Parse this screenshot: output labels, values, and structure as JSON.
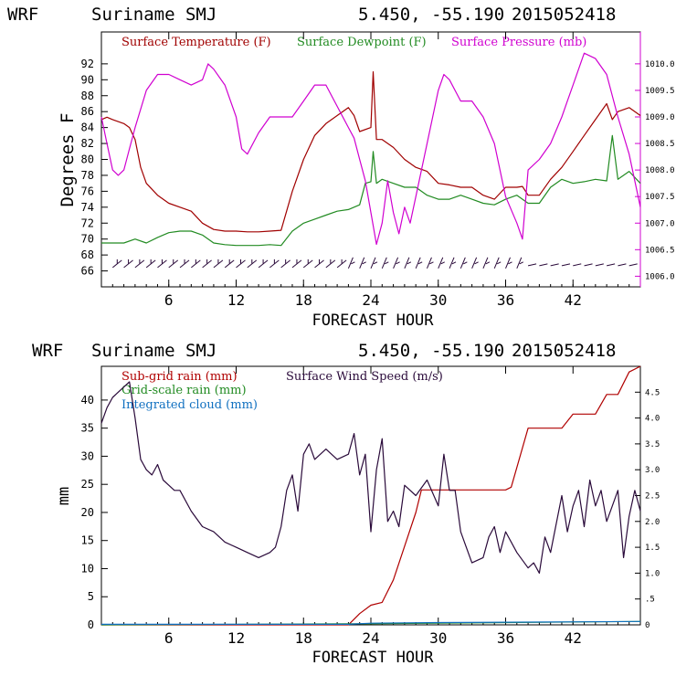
{
  "colors": {
    "background": "#ffffff",
    "axis": "#000000",
    "temperature": "#a00000",
    "dewpoint": "#228b22",
    "pressure": "#d000d0",
    "subgrid_rain": "#b00000",
    "gridscale_rain": "#228b22",
    "cloud": "#1070c0",
    "wind": "#2a0a3a",
    "barbs": "#2a0a3a"
  },
  "chart_data": [
    {
      "type": "line",
      "header": {
        "model": "WRF",
        "location": "Suriname SMJ",
        "coords": "5.450, -55.190",
        "init": "2015052418"
      },
      "xlabel": "FORECAST HOUR",
      "ylabel": "Degrees F",
      "xlim": [
        0,
        48
      ],
      "ylim": [
        64,
        96
      ],
      "y2lim": [
        1005.8,
        1010.6
      ],
      "x_ticks": [
        6,
        12,
        18,
        24,
        30,
        36,
        42
      ],
      "x_tick_labels": [
        "6",
        "12",
        "18",
        "24",
        "30",
        "36",
        "42"
      ],
      "y_ticks": [
        66,
        68,
        70,
        72,
        74,
        76,
        78,
        80,
        82,
        84,
        86,
        88,
        90,
        92
      ],
      "y_tick_labels": [
        "66",
        "68",
        "70",
        "72",
        "74",
        "76",
        "78",
        "80",
        "82",
        "84",
        "86",
        "88",
        "90",
        "92"
      ],
      "y2_ticks": [
        1006.0,
        1006.5,
        1007.0,
        1007.5,
        1008.0,
        1008.5,
        1009.0,
        1009.5,
        1010.0
      ],
      "y2_tick_labels": [
        "1006.0",
        "1006.5",
        "1007.0",
        "1007.5",
        "1008.0",
        "1008.5",
        "1009.0",
        "1009.5",
        "1010.0"
      ],
      "legend": [
        "Surface Temperature (F)",
        "Surface Dewpoint (F)",
        "Surface Pressure (mb)"
      ],
      "series": [
        {
          "name": "Surface Temperature (F)",
          "axis": "left",
          "x": [
            0,
            0.5,
            1,
            2,
            2.5,
            3,
            3.5,
            4,
            5,
            6,
            7,
            8,
            9,
            10,
            11,
            12,
            13,
            14,
            15,
            16,
            17,
            18,
            19,
            20,
            21,
            22,
            22.5,
            23,
            24,
            24.2,
            24.5,
            25,
            26,
            27,
            28,
            29,
            30,
            31,
            32,
            33,
            34,
            35,
            36,
            37,
            37.5,
            38,
            39,
            40,
            41,
            42,
            43,
            44,
            45,
            45.5,
            46,
            47,
            48
          ],
          "values": [
            85,
            85.3,
            85,
            84.5,
            84,
            82.5,
            79,
            77,
            75.5,
            74.5,
            74,
            73.5,
            72,
            71.2,
            71,
            71,
            70.9,
            70.9,
            71,
            71.1,
            76,
            80,
            83,
            84.5,
            85.5,
            86.5,
            85.5,
            83.5,
            84,
            91,
            82.5,
            82.5,
            81.5,
            80,
            79,
            78.5,
            77,
            76.8,
            76.5,
            76.5,
            75.5,
            75,
            76.5,
            76.5,
            76.6,
            75.5,
            75.5,
            77.5,
            79,
            81,
            83,
            85,
            87,
            85,
            86,
            86.5,
            85.5
          ]
        },
        {
          "name": "Surface Dewpoint (F)",
          "axis": "left",
          "x": [
            0,
            2,
            3,
            4,
            5,
            6,
            7,
            8,
            9,
            10,
            11,
            12,
            13,
            14,
            15,
            16,
            17,
            18,
            19,
            20,
            21,
            22,
            23,
            23.5,
            24,
            24.2,
            24.5,
            25,
            26,
            27,
            28,
            29,
            30,
            31,
            32,
            33,
            34,
            35,
            36,
            37,
            38,
            39,
            40,
            41,
            42,
            43,
            44,
            45,
            45.5,
            46,
            47,
            48
          ],
          "values": [
            69.5,
            69.5,
            70,
            69.5,
            70.2,
            70.8,
            71,
            71,
            70.5,
            69.5,
            69.3,
            69.2,
            69.2,
            69.2,
            69.3,
            69.2,
            71,
            72,
            72.5,
            73,
            73.5,
            73.7,
            74.3,
            77,
            77.2,
            81,
            77,
            77.5,
            77,
            76.5,
            76.5,
            75.5,
            75,
            75,
            75.5,
            75,
            74.5,
            74.3,
            75,
            75.5,
            74.5,
            74.5,
            76.5,
            77.5,
            77,
            77.2,
            77.5,
            77.3,
            83,
            77.5,
            78.5,
            77
          ]
        },
        {
          "name": "Surface Pressure (mb)",
          "axis": "right",
          "x": [
            0,
            0.5,
            1,
            1.5,
            2,
            2.5,
            3,
            4,
            5,
            6,
            7,
            8,
            9,
            9.5,
            10,
            11,
            12,
            12.5,
            13,
            14,
            15,
            16,
            17,
            18,
            19,
            20,
            21,
            22,
            22.5,
            23,
            23.5,
            24,
            24.5,
            25,
            25.5,
            26,
            26.5,
            27,
            27.5,
            28,
            29,
            30,
            30.5,
            31,
            32,
            33,
            34,
            35,
            36,
            37,
            37.5,
            38,
            39,
            40,
            41,
            41.5,
            42,
            43,
            44,
            45,
            46,
            47,
            48
          ],
          "values": [
            1009.0,
            1008.5,
            1008.0,
            1007.9,
            1008.0,
            1008.4,
            1008.8,
            1009.5,
            1009.8,
            1009.8,
            1009.7,
            1009.6,
            1009.7,
            1010.0,
            1009.9,
            1009.6,
            1009.0,
            1008.4,
            1008.3,
            1008.7,
            1009.0,
            1009.0,
            1009.0,
            1009.3,
            1009.6,
            1009.6,
            1009.2,
            1008.8,
            1008.6,
            1008.2,
            1007.8,
            1007.2,
            1006.6,
            1007.0,
            1007.8,
            1007.2,
            1006.8,
            1007.3,
            1007.0,
            1007.5,
            1008.5,
            1009.5,
            1009.8,
            1009.7,
            1009.3,
            1009.3,
            1009.0,
            1008.5,
            1007.5,
            1007.0,
            1006.7,
            1008.0,
            1008.2,
            1008.5,
            1009.0,
            1009.3,
            1009.6,
            1010.2,
            1010.1,
            1009.8,
            1009.0,
            1008.3,
            1007.3
          ]
        }
      ],
      "wind_barbs": {
        "hours_start": 1,
        "hours_end": 47,
        "step": 1
      },
      "wind_barbs_y": 67
    },
    {
      "type": "line",
      "header": {
        "model": "WRF",
        "location": "Suriname SMJ",
        "coords": "5.450, -55.190",
        "init": "2015052418"
      },
      "xlabel": "FORECAST HOUR",
      "ylabel": "mm",
      "xlim": [
        0,
        48
      ],
      "ylim": [
        0,
        46
      ],
      "y2lim": [
        0,
        5
      ],
      "x_ticks": [
        6,
        12,
        18,
        24,
        30,
        36,
        42
      ],
      "x_tick_labels": [
        "6",
        "12",
        "18",
        "24",
        "30",
        "36",
        "42"
      ],
      "y_ticks": [
        0,
        5,
        10,
        15,
        20,
        25,
        30,
        35,
        40
      ],
      "y_tick_labels": [
        "0",
        "5",
        "10",
        "15",
        "20",
        "25",
        "30",
        "35",
        "40"
      ],
      "y2_ticks": [
        0,
        0.5,
        1.0,
        1.5,
        2.0,
        2.5,
        3.0,
        3.5,
        4.0,
        4.5
      ],
      "y2_tick_labels": [
        "0",
        ".5",
        "1.0",
        "1.5",
        "2.0",
        "2.5",
        "3.0",
        "3.5",
        "4.0",
        "4.5"
      ],
      "legend": [
        "Sub-grid rain (mm)",
        "Surface Wind Speed (m/s)",
        "Grid-scale rain (mm)",
        "Integrated cloud (mm)"
      ],
      "series": [
        {
          "name": "Sub-grid rain (mm)",
          "axis": "left",
          "x": [
            0,
            22,
            22.5,
            23,
            24,
            25,
            26,
            27,
            28,
            28.5,
            30,
            32,
            34,
            36,
            36.5,
            37,
            38,
            39,
            40,
            41,
            42,
            43,
            44,
            45,
            46,
            47,
            48
          ],
          "values": [
            0,
            0,
            1,
            2,
            3.5,
            4,
            8,
            14,
            20,
            24,
            24,
            24,
            24,
            24,
            24.5,
            28,
            35,
            35,
            35,
            35,
            37.5,
            37.5,
            37.5,
            41,
            41,
            45,
            46
          ]
        },
        {
          "name": "Grid-scale rain (mm)",
          "axis": "left",
          "x": [
            0,
            24,
            36,
            48
          ],
          "values": [
            0,
            0.2,
            0.4,
            0.6
          ]
        },
        {
          "name": "Integrated cloud (mm)",
          "axis": "left",
          "x": [
            0,
            22,
            24,
            30,
            40,
            48
          ],
          "values": [
            0.1,
            0.1,
            0.3,
            0.4,
            0.5,
            0.6
          ]
        },
        {
          "name": "Surface Wind Speed (m/s)",
          "axis": "right",
          "x": [
            0,
            0.5,
            1,
            2,
            2.5,
            3,
            3.5,
            4,
            4.5,
            5,
            5.5,
            6,
            6.5,
            7,
            8,
            9,
            10,
            11,
            12,
            13,
            14,
            15,
            15.5,
            16,
            16.5,
            17,
            17.5,
            18,
            18.5,
            19,
            20,
            21,
            22,
            22.5,
            23,
            23.5,
            24,
            24.5,
            25,
            25.5,
            26,
            26.5,
            27,
            28,
            29,
            30,
            30.5,
            31,
            31.5,
            32,
            33,
            34,
            34.5,
            35,
            35.5,
            36,
            37,
            38,
            38.5,
            39,
            39.5,
            40,
            41,
            41.5,
            42,
            42.5,
            43,
            43.5,
            44,
            44.5,
            45,
            45.5,
            46,
            46.5,
            47,
            47.5,
            48
          ],
          "values": [
            3.9,
            4.2,
            4.4,
            4.6,
            4.7,
            4.0,
            3.2,
            3.0,
            2.9,
            3.1,
            2.8,
            2.7,
            2.6,
            2.6,
            2.2,
            1.9,
            1.8,
            1.6,
            1.5,
            1.4,
            1.3,
            1.4,
            1.5,
            1.9,
            2.6,
            2.9,
            2.2,
            3.3,
            3.5,
            3.2,
            3.4,
            3.2,
            3.3,
            3.7,
            2.9,
            3.3,
            1.8,
            3.0,
            3.6,
            2.0,
            2.2,
            1.9,
            2.7,
            2.5,
            2.8,
            2.3,
            3.3,
            2.6,
            2.6,
            1.8,
            1.2,
            1.3,
            1.7,
            1.9,
            1.4,
            1.8,
            1.4,
            1.1,
            1.2,
            1.0,
            1.7,
            1.4,
            2.5,
            1.8,
            2.3,
            2.6,
            1.9,
            2.8,
            2.3,
            2.6,
            2.0,
            2.3,
            2.6,
            1.3,
            2.1,
            2.6,
            2.2
          ]
        }
      ]
    }
  ]
}
